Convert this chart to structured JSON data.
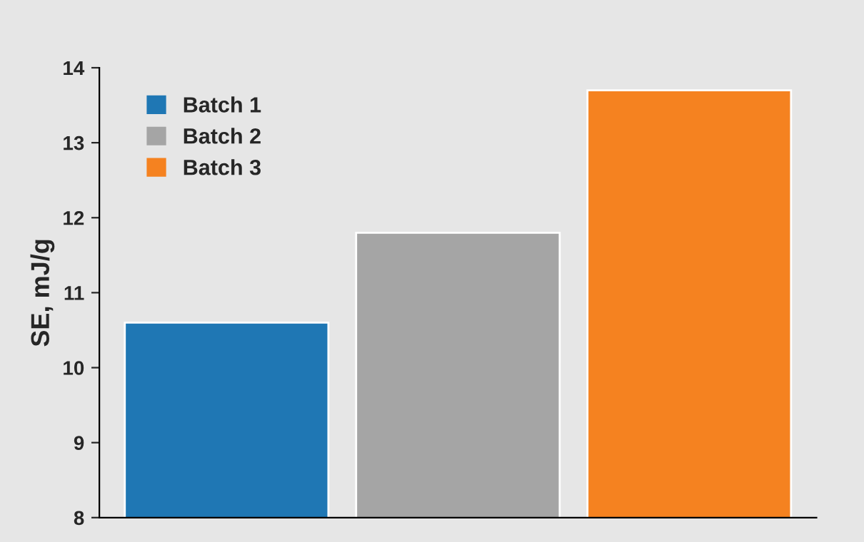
{
  "chart_data": {
    "type": "bar",
    "ylabel": "SE, mJ/g",
    "categories": [
      null,
      null,
      null
    ],
    "series": [
      {
        "name": "Batch 1",
        "color": "#1f77b4",
        "values": [
          10.6,
          null,
          null
        ]
      },
      {
        "name": "Batch 2",
        "color": "#a5a5a5",
        "values": [
          null,
          11.8,
          null
        ]
      },
      {
        "name": "Batch 3",
        "color": "#f58220",
        "values": [
          null,
          null,
          13.7
        ]
      }
    ],
    "ylim": [
      8,
      14
    ],
    "yticks": [
      8,
      9,
      10,
      11,
      12,
      13,
      14
    ],
    "grid": false,
    "legend": "top left"
  }
}
